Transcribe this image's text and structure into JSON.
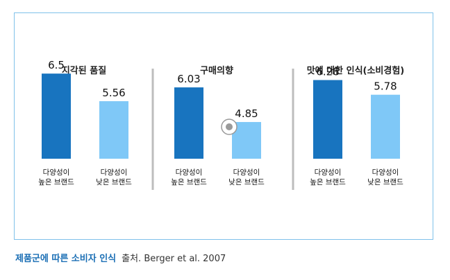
{
  "colors": {
    "high": "#1874bf",
    "low": "#7fc8f7",
    "divider": "#bdbdbd",
    "accent": "#1b6fb5"
  },
  "icon": {
    "name": "circle-dot-icon"
  },
  "caption": {
    "title": "제품군에 따른 소비자 인식",
    "source": "출처. Berger et al. 2007"
  },
  "chart_data": [
    {
      "type": "bar",
      "title": "지각된 품질",
      "categories": [
        "다양성이\n높은 브랜드",
        "다양성이\n낮은 브랜드"
      ],
      "values": [
        6.5,
        5.56
      ],
      "value_labels": [
        "6.5",
        "5.56"
      ]
    },
    {
      "type": "bar",
      "title": "구매의향",
      "categories": [
        "다양성이\n높은 브랜드",
        "다양성이\n낮은 브랜드"
      ],
      "values": [
        6.03,
        4.85
      ],
      "value_labels": [
        "6.03",
        "4.85"
      ]
    },
    {
      "type": "bar",
      "title": "맛에 대한 인식(소비경험)",
      "categories": [
        "다양성이\n높은 브랜드",
        "다양성이\n낮은 브랜드"
      ],
      "values": [
        6.28,
        5.78
      ],
      "value_labels": [
        "6.28",
        "5.78"
      ]
    }
  ]
}
